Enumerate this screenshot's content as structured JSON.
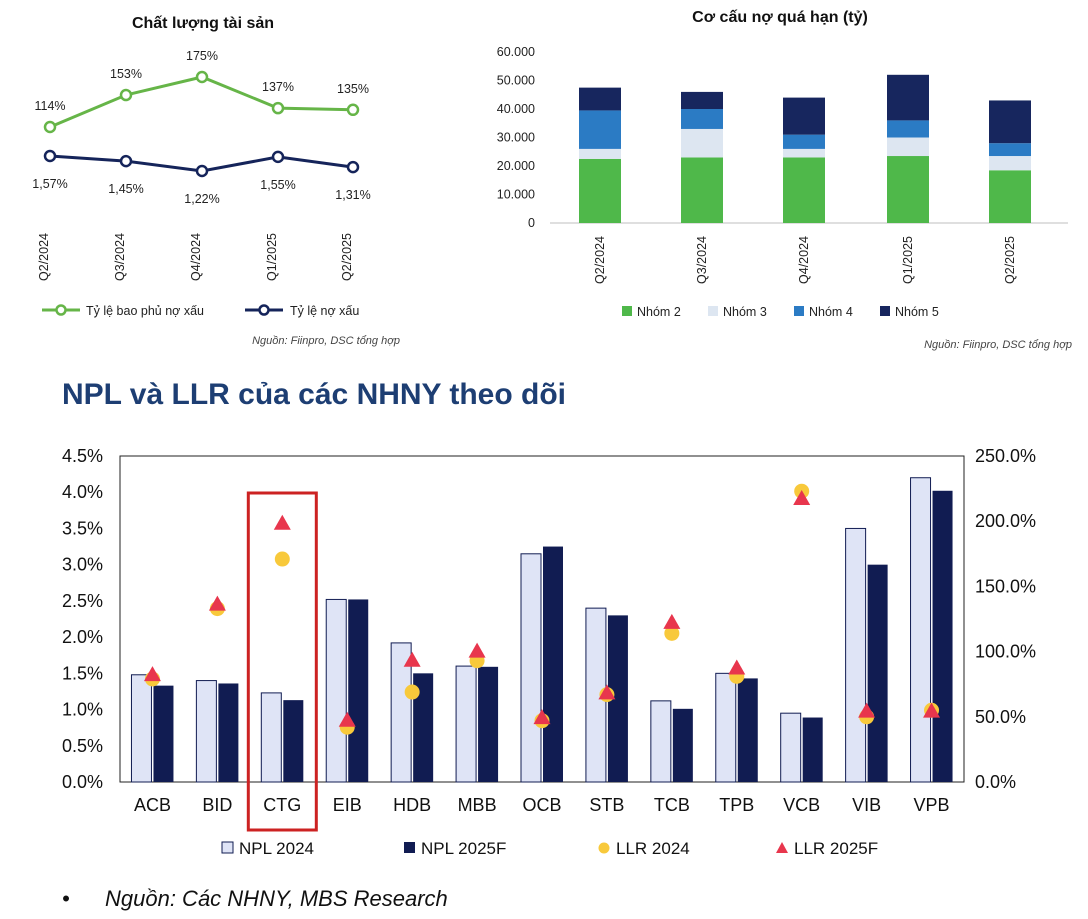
{
  "colors": {
    "green": "#66b548",
    "navy": "#15245a",
    "nhom2": "#4fb84a",
    "nhom3": "#dde6f1",
    "nhom4": "#2b7bc4",
    "nhom5": "#17265e",
    "npl2024": "#dfe4f6",
    "npl2025": "#111c52",
    "llr2024": "#f8c93b",
    "llr2025": "#e8364d",
    "highlight": "#cc2222",
    "heading": "#1d3e73"
  },
  "chart_data": [
    {
      "type": "line",
      "title": "Chất lượng tài sản",
      "categories": [
        "Q2/2024",
        "Q3/2024",
        "Q4/2024",
        "Q1/2025",
        "Q2/2025"
      ],
      "series": [
        {
          "name": "Tỷ lệ bao phủ nợ xấu",
          "values": [
            114,
            153,
            175,
            137,
            135
          ],
          "labels": [
            "114%",
            "153%",
            "175%",
            "137%",
            "135%"
          ]
        },
        {
          "name": "Tỷ lệ nợ xấu",
          "values": [
            1.57,
            1.45,
            1.22,
            1.55,
            1.31
          ],
          "labels": [
            "1,57%",
            "1,45%",
            "1,22%",
            "1,55%",
            "1,31%"
          ]
        }
      ],
      "source": "Nguồn: Fiinpro, DSC tổng hợp"
    },
    {
      "type": "bar",
      "stacked": true,
      "title": "Cơ cấu nợ quá hạn (tỷ)",
      "categories": [
        "Q2/2024",
        "Q3/2024",
        "Q4/2024",
        "Q1/2025",
        "Q2/2025"
      ],
      "ylim": [
        0,
        60000
      ],
      "yticks": [
        0,
        10000,
        20000,
        30000,
        40000,
        50000,
        60000
      ],
      "ytick_labels": [
        "0",
        "10.000",
        "20.000",
        "30.000",
        "40.000",
        "50.000",
        "60.000"
      ],
      "series": [
        {
          "name": "Nhóm 2",
          "values": [
            22500,
            23000,
            23000,
            23500,
            18500
          ]
        },
        {
          "name": "Nhóm 3",
          "values": [
            3500,
            10000,
            3000,
            6500,
            5000
          ]
        },
        {
          "name": "Nhóm 4",
          "values": [
            13500,
            7000,
            5000,
            6000,
            4500
          ]
        },
        {
          "name": "Nhóm 5",
          "values": [
            8000,
            6000,
            13000,
            16000,
            15000
          ]
        }
      ],
      "source": "Nguồn: Fiinpro, DSC tổng hợp"
    },
    {
      "type": "bar",
      "title": "NPL và LLR của các NHNY theo dõi",
      "categories": [
        "ACB",
        "BID",
        "CTG",
        "EIB",
        "HDB",
        "MBB",
        "OCB",
        "STB",
        "TCB",
        "TPB",
        "VCB",
        "VIB",
        "VPB"
      ],
      "highlight": "CTG",
      "ylim": [
        0,
        4.5
      ],
      "yticks": [
        "0.0%",
        "0.5%",
        "1.0%",
        "1.5%",
        "2.0%",
        "2.5%",
        "3.0%",
        "3.5%",
        "4.0%",
        "4.5%"
      ],
      "y2lim": [
        0,
        250
      ],
      "y2ticks": [
        "0.0%",
        "50.0%",
        "100.0%",
        "150.0%",
        "200.0%",
        "250.0%"
      ],
      "series": [
        {
          "name": "NPL 2024",
          "axis": "left",
          "values": [
            1.48,
            1.4,
            1.23,
            2.52,
            1.92,
            1.6,
            3.15,
            2.4,
            1.12,
            1.5,
            0.95,
            3.5,
            4.2
          ]
        },
        {
          "name": "NPL 2025F",
          "axis": "left",
          "values": [
            1.33,
            1.36,
            1.13,
            2.52,
            1.5,
            1.59,
            3.25,
            2.3,
            1.01,
            1.43,
            0.89,
            3.0,
            4.02
          ]
        },
        {
          "name": "LLR 2024",
          "axis": "right",
          "values": [
            79,
            133,
            171,
            42,
            69,
            93,
            47,
            67,
            114,
            81,
            223,
            50,
            55
          ]
        },
        {
          "name": "LLR 2025F",
          "axis": "right",
          "values": [
            82,
            136,
            198,
            47,
            93,
            100,
            49,
            68,
            122,
            87,
            217,
            54,
            54
          ]
        }
      ],
      "source": "Nguồn: Các NHNY, MBS Research"
    }
  ]
}
